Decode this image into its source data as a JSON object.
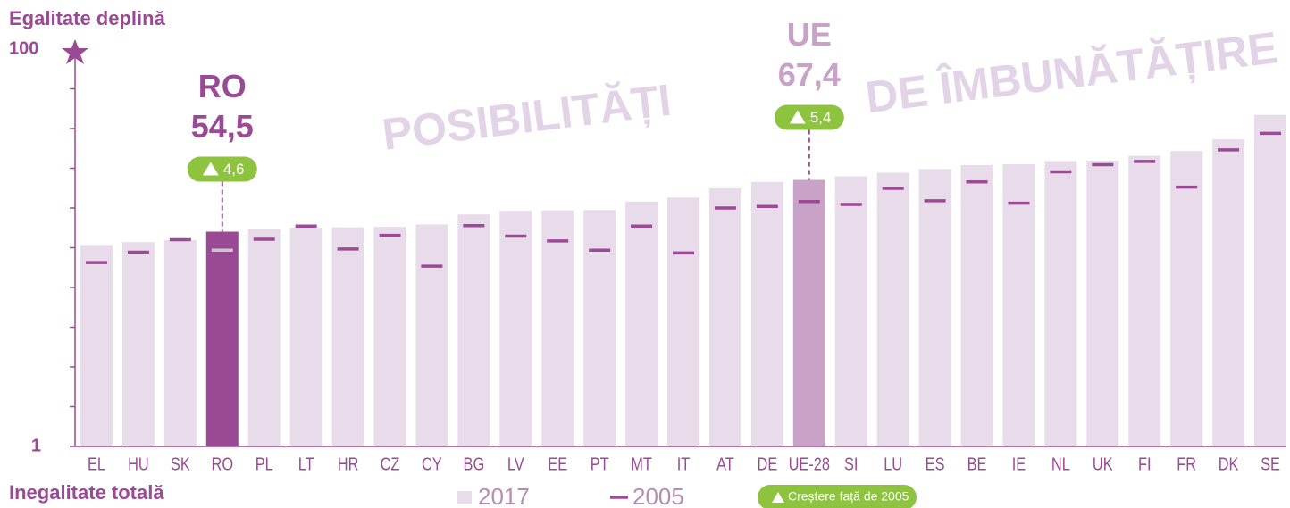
{
  "chart_data": {
    "type": "bar",
    "top_label": "Egalitate deplină",
    "bottom_label": "Inegalitate totală",
    "annotations": [
      "POSIBILITĂȚI",
      "DE ÎMBUNĂTĂȚIRE"
    ],
    "categories": [
      "EL",
      "HU",
      "SK",
      "RO",
      "PL",
      "LT",
      "HR",
      "CZ",
      "CY",
      "BG",
      "LV",
      "EE",
      "PT",
      "MT",
      "IT",
      "AT",
      "DE",
      "UE-28",
      "SI",
      "LU",
      "ES",
      "BE",
      "IE",
      "NL",
      "UK",
      "FI",
      "FR",
      "DK",
      "SE"
    ],
    "series": [
      {
        "name": "2017",
        "color": "#e9dcea",
        "marker": "bar",
        "values": [
          51.2,
          51.9,
          52.4,
          54.5,
          55.2,
          55.5,
          55.6,
          55.7,
          56.3,
          58.8,
          59.7,
          59.8,
          59.9,
          62.0,
          63.0,
          65.3,
          66.9,
          67.4,
          68.3,
          69.2,
          70.1,
          71.1,
          71.3,
          72.1,
          72.2,
          73.4,
          74.6,
          77.5,
          83.6
        ]
      },
      {
        "name": "2005",
        "color": "#9c4a96",
        "marker": "dash",
        "values": [
          46.8,
          49.4,
          52.5,
          49.9,
          52.6,
          55.9,
          50.2,
          53.6,
          45.9,
          56.0,
          53.4,
          52.2,
          49.9,
          55.9,
          49.2,
          60.4,
          60.8,
          62.0,
          61.3,
          65.3,
          62.2,
          66.9,
          61.6,
          69.4,
          71.2,
          72.0,
          65.6,
          74.9,
          79.0
        ]
      }
    ],
    "highlights": [
      {
        "category": "RO",
        "label": "RO",
        "value_label": "54,5",
        "change_label": "4,6",
        "color": "#9a4a94",
        "dash_color": "#c8c8c8"
      },
      {
        "category": "UE-28",
        "label": "UE",
        "value_label": "67,4",
        "change_label": "5,4",
        "color": "#c9a2c8",
        "dash_color": "#9c4a96"
      }
    ],
    "change_color": "#8dc33f",
    "change_legend": "Creștere față de 2005",
    "ylim": [
      1,
      100
    ],
    "yticks": [
      1,
      100
    ]
  }
}
